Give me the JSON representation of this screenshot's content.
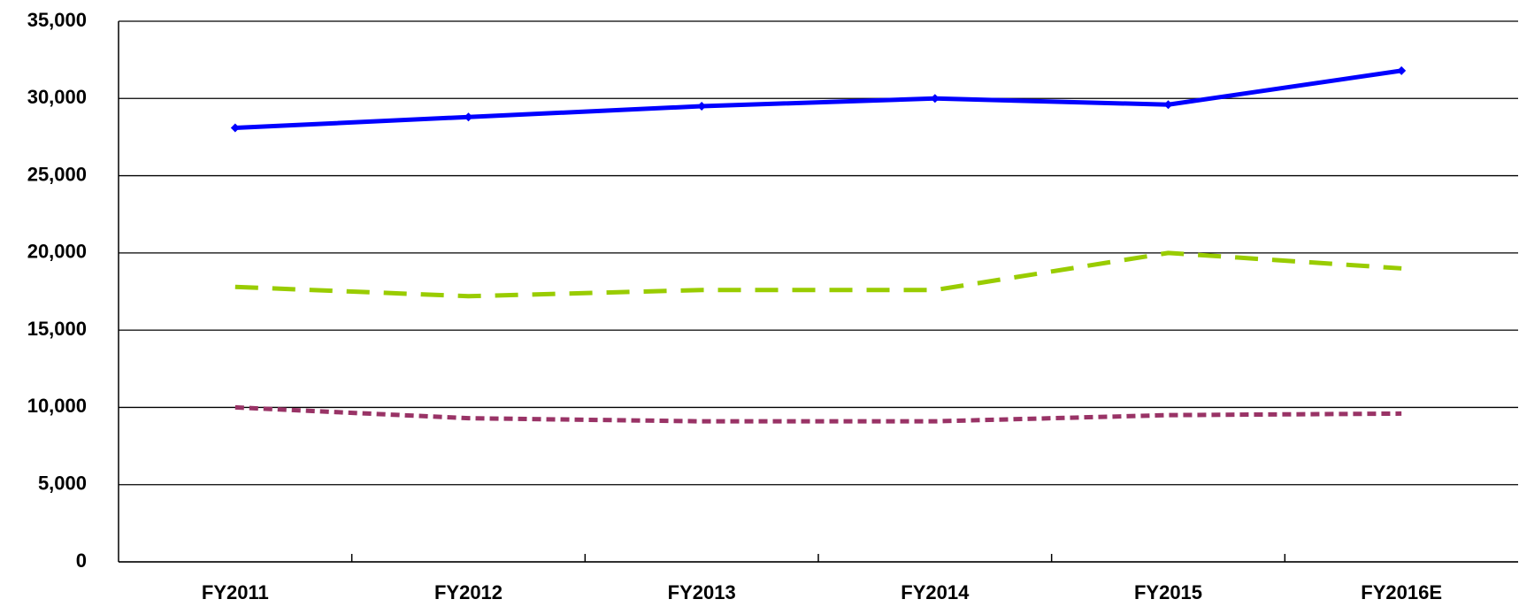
{
  "chart_data": {
    "type": "line",
    "categories": [
      "FY2011",
      "FY2012",
      "FY2013",
      "FY2014",
      "FY2015",
      "FY2016E"
    ],
    "series": [
      {
        "color": "#0000ff",
        "dash": "solid",
        "marker": "diamond",
        "values": [
          28100,
          28800,
          29500,
          30000,
          29600,
          31800
        ]
      },
      {
        "color": "#99cc00",
        "dash": "long",
        "values": [
          17800,
          17200,
          17600,
          17600,
          20000,
          19000
        ]
      },
      {
        "color": "#993366",
        "dash": "short",
        "values": [
          10000,
          9300,
          9100,
          9100,
          9500,
          9600
        ]
      }
    ],
    "ylim": [
      0,
      35000
    ],
    "yticks": [
      0,
      {
        "value": 5000,
        "label": "5,000"
      },
      {
        "value": 10000,
        "label": "10,000"
      },
      {
        "value": 15000,
        "label": "15,000"
      },
      {
        "value": 20000,
        "label": "20,000"
      },
      {
        "value": 25000,
        "label": "25,000"
      },
      {
        "value": 30000,
        "label": "30,000"
      },
      {
        "value": 35000,
        "label": "35,000"
      }
    ],
    "grid": true
  }
}
